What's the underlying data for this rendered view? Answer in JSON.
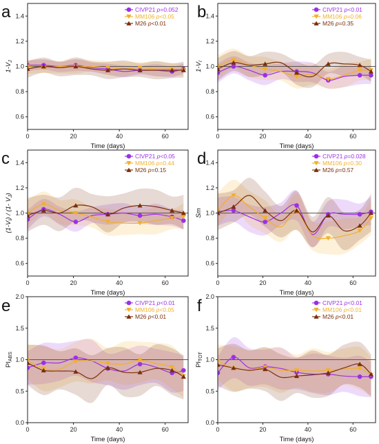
{
  "colors": {
    "CIVP21": "#9b30e6",
    "MM106": "#f2b02a",
    "M26": "#7a2e0b",
    "reference_line": "#555555"
  },
  "chart_data": [
    {
      "panel": "a",
      "type": "line",
      "xlabel": "Time (days)",
      "ylabel": "1-V",
      "ylabel_sub": "J",
      "ylabel_sup": "",
      "xlim": [
        0,
        70
      ],
      "ylim": [
        0.5,
        1.5
      ],
      "xticks": [
        0,
        20,
        40,
        60
      ],
      "yticks": [
        0.6,
        0.8,
        1.0,
        1.2,
        1.4
      ],
      "yticklabels": [
        "0.6",
        "0.8",
        "1.0",
        "1.2",
        "1.4"
      ],
      "reference_line": 1.0,
      "series": [
        {
          "name": "CIVP21",
          "p_label": "p=0.052",
          "marker": "circle",
          "x": [
            0,
            7,
            14,
            21,
            28,
            35,
            42,
            49,
            56,
            63,
            68
          ],
          "y": [
            1.01,
            1.01,
            1.0,
            1.01,
            0.99,
            0.98,
            0.96,
            0.97,
            0.97,
            0.96,
            0.98
          ],
          "band": 0.04
        },
        {
          "name": "MM106",
          "p_label": "p<0.05",
          "marker": "triangle-down",
          "x": [
            0,
            7,
            14,
            21,
            28,
            35,
            42,
            49,
            56,
            63,
            68
          ],
          "y": [
            1.0,
            0.99,
            1.0,
            1.0,
            1.0,
            0.99,
            0.98,
            0.99,
            0.98,
            0.98,
            0.97
          ],
          "band": 0.05
        },
        {
          "name": "M26",
          "p_label": "p<0.01",
          "marker": "triangle-up",
          "x": [
            0,
            7,
            14,
            21,
            28,
            35,
            42,
            49,
            56,
            63,
            68
          ],
          "y": [
            0.98,
            1.0,
            0.99,
            1.0,
            0.98,
            0.97,
            0.98,
            0.97,
            0.97,
            0.97,
            0.97
          ],
          "band": 0.06
        }
      ]
    },
    {
      "panel": "b",
      "type": "line",
      "xlabel": "Time (days)",
      "ylabel": "1-V",
      "ylabel_sub": "I",
      "ylabel_sup": "",
      "xlim": [
        0,
        70
      ],
      "ylim": [
        0.5,
        1.5
      ],
      "xticks": [
        0,
        20,
        40,
        60
      ],
      "yticks": [
        0.6,
        0.8,
        1.0,
        1.2,
        1.4
      ],
      "yticklabels": [
        "0.6",
        "0.8",
        "1.0",
        "1.2",
        "1.4"
      ],
      "reference_line": 1.0,
      "series": [
        {
          "name": "CIVP21",
          "p_label": "p<0.01",
          "marker": "circle",
          "x": [
            0,
            7,
            14,
            21,
            28,
            35,
            42,
            49,
            56,
            63,
            68
          ],
          "y": [
            0.95,
            1.0,
            0.97,
            0.93,
            0.96,
            0.96,
            0.95,
            0.89,
            0.92,
            0.93,
            0.93
          ],
          "band": 0.07
        },
        {
          "name": "MM106",
          "p_label": "p=0.06",
          "marker": "triangle-down",
          "x": [
            0,
            7,
            14,
            21,
            28,
            35,
            42,
            49,
            56,
            63,
            68
          ],
          "y": [
            1.0,
            1.05,
            1.01,
            0.98,
            0.96,
            0.92,
            0.94,
            0.9,
            0.93,
            0.97,
            0.97
          ],
          "band": 0.08
        },
        {
          "name": "M26",
          "p_label": "p=0.35",
          "marker": "triangle-up",
          "x": [
            0,
            7,
            14,
            21,
            28,
            35,
            42,
            49,
            56,
            63,
            68
          ],
          "y": [
            0.98,
            1.03,
            1.01,
            1.02,
            1.03,
            0.95,
            0.92,
            1.02,
            1.02,
            1.01,
            0.96
          ],
          "band": 0.08
        }
      ]
    },
    {
      "panel": "c",
      "type": "line",
      "xlabel": "Time (days)",
      "ylabel": "(1-V",
      "ylabel_full": "(1-VI) / (1- VJ)",
      "xlim": [
        0,
        70
      ],
      "ylim": [
        0.5,
        1.5
      ],
      "xticks": [
        0,
        20,
        40,
        60
      ],
      "yticks": [
        0.6,
        0.8,
        1.0,
        1.2,
        1.4
      ],
      "yticklabels": [
        "0.6",
        "0.8",
        "1.0",
        "1.2",
        "1.4"
      ],
      "reference_line": 1.0,
      "series": [
        {
          "name": "CIVP21",
          "p_label": "p<0.05",
          "marker": "circle",
          "x": [
            0,
            7,
            14,
            21,
            28,
            35,
            42,
            49,
            56,
            63,
            68
          ],
          "y": [
            0.95,
            1.03,
            0.99,
            0.93,
            0.98,
            0.99,
            1.0,
            0.98,
            0.99,
            0.97,
            0.94
          ],
          "band": 0.07
        },
        {
          "name": "MM106",
          "p_label": "p=0.44",
          "marker": "triangle-down",
          "x": [
            0,
            7,
            14,
            21,
            28,
            35,
            42,
            49,
            56,
            63,
            68
          ],
          "y": [
            1.0,
            1.07,
            1.02,
            1.0,
            0.97,
            0.93,
            0.92,
            0.92,
            0.94,
            0.96,
            0.97
          ],
          "band": 0.09
        },
        {
          "name": "M26",
          "p_label": "p=0.15",
          "marker": "triangle-up",
          "x": [
            0,
            7,
            14,
            21,
            28,
            35,
            42,
            49,
            56,
            63,
            68
          ],
          "y": [
            0.98,
            1.02,
            1.0,
            1.06,
            1.05,
            0.99,
            1.04,
            1.06,
            1.05,
            1.02,
            1.0
          ],
          "band": 0.12
        }
      ]
    },
    {
      "panel": "d",
      "type": "line",
      "xlabel": "Time (days)",
      "ylabel": "Sm",
      "xlim": [
        0,
        70
      ],
      "ylim": [
        0.5,
        1.5
      ],
      "xticks": [
        0,
        20,
        40,
        60
      ],
      "yticks": [
        0.6,
        0.8,
        1.0,
        1.2,
        1.4
      ],
      "yticklabels": [
        "0.6",
        "0.8",
        "1.0",
        "1.2",
        "1.4"
      ],
      "reference_line": 1.0,
      "series": [
        {
          "name": "CIVP21",
          "p_label": "p=0.028",
          "marker": "circle",
          "x": [
            0,
            7,
            14,
            21,
            28,
            35,
            42,
            49,
            56,
            63,
            68
          ],
          "y": [
            1.01,
            1.02,
            0.97,
            0.93,
            1.0,
            1.06,
            0.83,
            0.99,
            0.99,
            0.99,
            1.01
          ],
          "band": 0.1
        },
        {
          "name": "MM106",
          "p_label": "p=0.30",
          "marker": "triangle-down",
          "x": [
            0,
            7,
            14,
            21,
            28,
            35,
            42,
            49,
            56,
            63,
            68
          ],
          "y": [
            1.02,
            1.14,
            1.05,
            0.96,
            0.89,
            1.01,
            0.82,
            0.8,
            0.82,
            0.86,
            0.96
          ],
          "band": 0.12
        },
        {
          "name": "M26",
          "p_label": "p=0.57",
          "marker": "triangle-up",
          "x": [
            0,
            7,
            14,
            21,
            28,
            35,
            42,
            49,
            56,
            63,
            68
          ],
          "y": [
            1.0,
            1.05,
            1.14,
            1.02,
            0.94,
            1.02,
            0.85,
            0.98,
            0.86,
            0.9,
            1.0
          ],
          "band": 0.13
        }
      ]
    },
    {
      "panel": "e",
      "type": "line",
      "xlabel": "Time (days)",
      "ylabel": "PI",
      "ylabel_sub": "ABS",
      "ylabel_sup": "",
      "xlim": [
        0,
        70
      ],
      "ylim": [
        0,
        2.0
      ],
      "xticks": [
        0,
        20,
        40,
        60
      ],
      "yticks": [
        0.0,
        0.5,
        1.0,
        1.5,
        2.0
      ],
      "yticklabels": [
        "0.0",
        "0.5",
        "1.0",
        "1.5",
        "2.0"
      ],
      "reference_line": 1.0,
      "series": [
        {
          "name": "CIVP21",
          "p_label": "p<0.01",
          "marker": "circle",
          "x": [
            0,
            7,
            14,
            21,
            28,
            35,
            42,
            49,
            56,
            63,
            68
          ],
          "y": [
            0.87,
            0.95,
            0.95,
            1.03,
            0.98,
            0.86,
            0.82,
            0.93,
            0.88,
            0.79,
            0.83
          ],
          "band": 0.28
        },
        {
          "name": "MM106",
          "p_label": "p<0.05",
          "marker": "triangle-down",
          "x": [
            0,
            7,
            14,
            21,
            28,
            35,
            42,
            49,
            56,
            63,
            68
          ],
          "y": [
            0.99,
            0.86,
            0.85,
            0.97,
            0.98,
            0.94,
            0.93,
            0.99,
            0.94,
            0.88,
            0.74
          ],
          "band": 0.3
        },
        {
          "name": "M26",
          "p_label": "p<0.01",
          "marker": "triangle-up",
          "x": [
            0,
            7,
            14,
            21,
            28,
            35,
            42,
            49,
            56,
            63,
            68
          ],
          "y": [
            0.95,
            0.83,
            0.82,
            0.81,
            0.7,
            0.87,
            0.8,
            0.8,
            0.86,
            0.83,
            0.73
          ],
          "band": 0.33
        }
      ]
    },
    {
      "panel": "f",
      "type": "line",
      "xlabel": "Time (days)",
      "ylabel": "PI",
      "ylabel_sub": "TOT",
      "ylabel_sup": "",
      "xlim": [
        0,
        70
      ],
      "ylim": [
        0,
        2.0
      ],
      "xticks": [
        0,
        20,
        40,
        60
      ],
      "yticks": [
        0.0,
        0.5,
        1.0,
        1.5,
        2.0
      ],
      "yticklabels": [
        "0.0",
        "0.5",
        "1.0",
        "1.5",
        "2.0"
      ],
      "reference_line": 1.0,
      "series": [
        {
          "name": "CIVP21",
          "p_label": "p<0.01",
          "marker": "circle",
          "x": [
            0,
            7,
            14,
            21,
            28,
            35,
            42,
            49,
            56,
            63,
            68
          ],
          "y": [
            0.79,
            1.04,
            0.87,
            0.89,
            0.86,
            0.8,
            0.77,
            0.77,
            0.74,
            0.73,
            0.73
          ],
          "band": 0.28
        },
        {
          "name": "MM106",
          "p_label": "p<0.01",
          "marker": "triangle-down",
          "x": [
            0,
            7,
            14,
            21,
            28,
            35,
            42,
            49,
            56,
            63,
            68
          ],
          "y": [
            0.98,
            0.86,
            0.84,
            0.88,
            0.83,
            0.83,
            0.82,
            0.83,
            0.85,
            0.86,
            0.76
          ],
          "band": 0.3
        },
        {
          "name": "M26",
          "p_label": "p<0.01",
          "marker": "triangle-up",
          "x": [
            0,
            7,
            14,
            21,
            28,
            35,
            42,
            49,
            56,
            63,
            68
          ],
          "y": [
            0.92,
            0.87,
            0.83,
            0.85,
            0.72,
            0.74,
            0.76,
            0.79,
            0.87,
            0.93,
            0.77
          ],
          "band": 0.32
        }
      ]
    }
  ]
}
